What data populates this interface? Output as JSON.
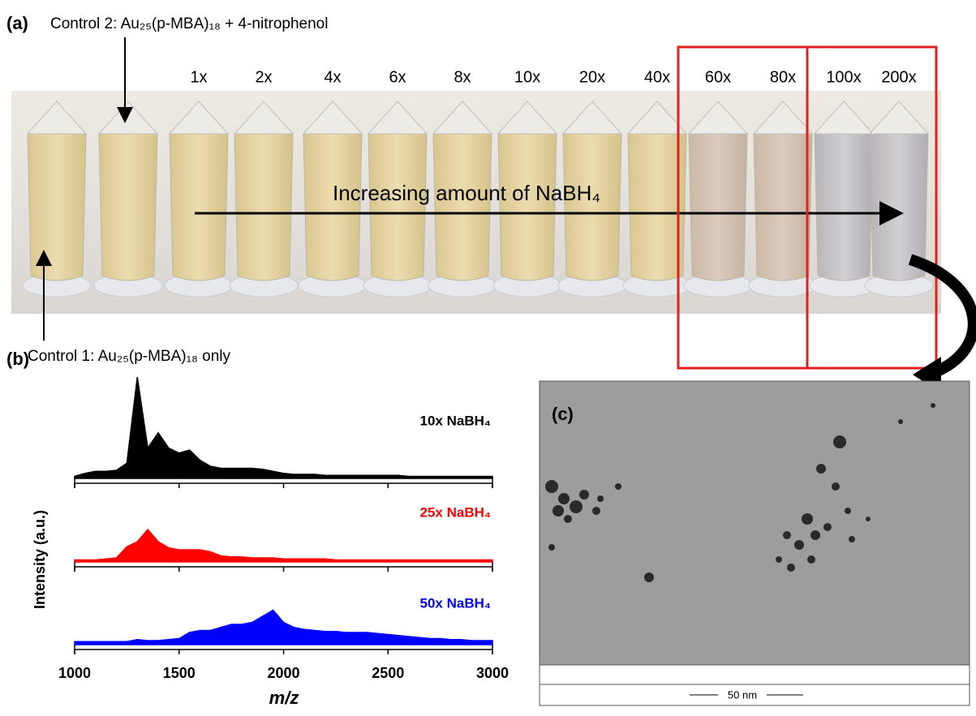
{
  "panel_a": {
    "label": "(a)",
    "control2": "Control 2: Au₂₅(p-MBA)₁₈ + 4-nitrophenol",
    "control1": "Control 1: Au₂₅(p-MBA)₁₈ only",
    "tube_labels": [
      "1x",
      "2x",
      "4x",
      "6x",
      "8x",
      "10x",
      "20x",
      "40x",
      "60x",
      "80x",
      "100x",
      "200x"
    ],
    "arrow_label": "Increasing amount of NaBH₄"
  },
  "panel_c": {
    "label": "(c)",
    "scale_bar": "50 nm"
  },
  "chart_data": {
    "type": "area",
    "panel_label": "(b)",
    "x_label": "m/z",
    "y_label": "Intensity (a.u.)",
    "xlim": [
      1000,
      3000
    ],
    "xticks": [
      1000,
      1500,
      2000,
      2500,
      3000
    ],
    "x": [
      1000,
      1050,
      1100,
      1150,
      1200,
      1250,
      1300,
      1350,
      1400,
      1450,
      1500,
      1550,
      1600,
      1650,
      1700,
      1750,
      1800,
      1850,
      1900,
      1950,
      2000,
      2050,
      2100,
      2150,
      2200,
      2250,
      2300,
      2350,
      2400,
      2450,
      2500,
      2550,
      2600,
      2650,
      2700,
      2750,
      2800,
      2850,
      2900,
      2950,
      3000
    ],
    "series": [
      {
        "name": "10x NaBH₄",
        "color": "#000000",
        "values": [
          0.02,
          0.05,
          0.07,
          0.07,
          0.08,
          0.15,
          1.0,
          0.3,
          0.45,
          0.3,
          0.25,
          0.28,
          0.18,
          0.12,
          0.1,
          0.1,
          0.1,
          0.1,
          0.09,
          0.07,
          0.05,
          0.04,
          0.04,
          0.04,
          0.03,
          0.03,
          0.03,
          0.03,
          0.03,
          0.03,
          0.03,
          0.03,
          0.02,
          0.02,
          0.02,
          0.02,
          0.02,
          0.02,
          0.02,
          0.02,
          0.02
        ]
      },
      {
        "name": "25x NaBH₄",
        "color": "#ff0000",
        "values": [
          0.02,
          0.02,
          0.02,
          0.03,
          0.04,
          0.15,
          0.2,
          0.32,
          0.2,
          0.14,
          0.12,
          0.12,
          0.12,
          0.1,
          0.06,
          0.05,
          0.05,
          0.04,
          0.04,
          0.04,
          0.03,
          0.03,
          0.03,
          0.03,
          0.03,
          0.02,
          0.02,
          0.02,
          0.02,
          0.02,
          0.02,
          0.02,
          0.02,
          0.02,
          0.02,
          0.02,
          0.02,
          0.02,
          0.02,
          0.02,
          0.02
        ]
      },
      {
        "name": "50x NaBH₄",
        "color": "#0000ff",
        "values": [
          0.03,
          0.03,
          0.03,
          0.03,
          0.03,
          0.03,
          0.05,
          0.04,
          0.04,
          0.05,
          0.06,
          0.12,
          0.14,
          0.14,
          0.17,
          0.2,
          0.2,
          0.22,
          0.28,
          0.34,
          0.22,
          0.17,
          0.15,
          0.14,
          0.13,
          0.13,
          0.12,
          0.12,
          0.12,
          0.11,
          0.1,
          0.09,
          0.08,
          0.07,
          0.06,
          0.06,
          0.05,
          0.05,
          0.04,
          0.04,
          0.04
        ]
      }
    ]
  }
}
